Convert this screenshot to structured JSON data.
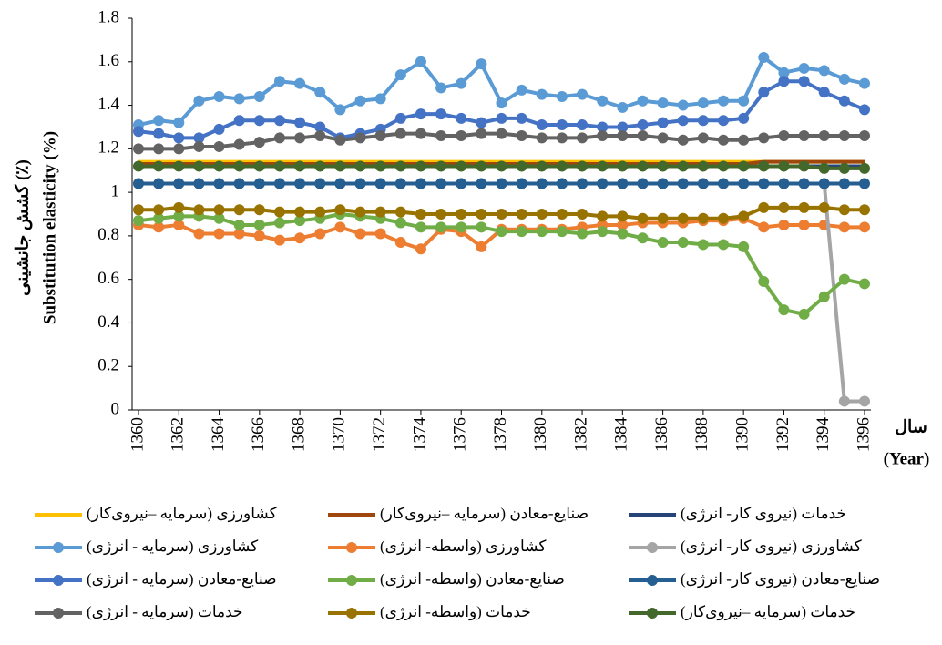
{
  "chart_data": {
    "type": "line",
    "y_label": "کشش جانشینی (٪)",
    "y_label_en": "Substitution elasticity (%)",
    "x_label": "سال",
    "x_label_en": "(Year)",
    "x": [
      1360,
      1361,
      1362,
      1363,
      1364,
      1365,
      1366,
      1367,
      1368,
      1369,
      1370,
      1371,
      1372,
      1373,
      1374,
      1375,
      1376,
      1377,
      1378,
      1379,
      1380,
      1381,
      1382,
      1383,
      1384,
      1385,
      1386,
      1387,
      1388,
      1389,
      1390,
      1391,
      1392,
      1393,
      1394,
      1395,
      1396
    ],
    "xlim": [
      1360,
      1396
    ],
    "xticks": [
      1360,
      1362,
      1364,
      1366,
      1368,
      1370,
      1372,
      1374,
      1376,
      1378,
      1380,
      1382,
      1384,
      1386,
      1388,
      1390,
      1392,
      1394,
      1396
    ],
    "ylim": [
      0,
      1.8
    ],
    "yticks": [
      0,
      0.2,
      0.4,
      0.6,
      0.8,
      1,
      1.2,
      1.4,
      1.6,
      1.8
    ],
    "series": [
      {
        "name": "کشاورزی (سرمایه –نیروی‌کار)",
        "color": "#FFC000",
        "markers": false,
        "values": [
          1.14,
          1.14,
          1.14,
          1.14,
          1.14,
          1.14,
          1.14,
          1.14,
          1.14,
          1.14,
          1.14,
          1.14,
          1.14,
          1.14,
          1.14,
          1.14,
          1.14,
          1.14,
          1.14,
          1.14,
          1.14,
          1.14,
          1.14,
          1.14,
          1.14,
          1.14,
          1.14,
          1.14,
          1.14,
          1.14,
          1.14,
          1.14,
          1.14,
          1.14,
          1.14,
          1.14,
          1.14
        ]
      },
      {
        "name": "صنایع-معادن (سرمایه –نیروی‌کار)",
        "color": "#9E480E",
        "markers": false,
        "values": [
          1.13,
          1.13,
          1.13,
          1.13,
          1.13,
          1.13,
          1.13,
          1.13,
          1.13,
          1.13,
          1.13,
          1.13,
          1.13,
          1.13,
          1.13,
          1.13,
          1.13,
          1.13,
          1.13,
          1.13,
          1.13,
          1.13,
          1.13,
          1.13,
          1.13,
          1.13,
          1.13,
          1.13,
          1.13,
          1.13,
          1.13,
          1.14,
          1.14,
          1.14,
          1.14,
          1.14,
          1.14
        ]
      },
      {
        "name": "خدمات (نیروی کار- انرژی)",
        "color": "#264478",
        "markers": false,
        "values": [
          1.12,
          1.12,
          1.12,
          1.12,
          1.12,
          1.12,
          1.12,
          1.12,
          1.12,
          1.12,
          1.12,
          1.12,
          1.12,
          1.12,
          1.12,
          1.12,
          1.12,
          1.12,
          1.12,
          1.12,
          1.12,
          1.12,
          1.12,
          1.12,
          1.12,
          1.12,
          1.12,
          1.12,
          1.12,
          1.12,
          1.12,
          1.12,
          1.12,
          1.12,
          1.12,
          1.12,
          1.12
        ]
      },
      {
        "name": "کشاورزی  (سرمایه - انرژی)",
        "color": "#5B9BD5",
        "markers": true,
        "values": [
          1.31,
          1.33,
          1.32,
          1.42,
          1.44,
          1.43,
          1.44,
          1.51,
          1.5,
          1.46,
          1.38,
          1.42,
          1.43,
          1.54,
          1.6,
          1.48,
          1.5,
          1.59,
          1.41,
          1.47,
          1.45,
          1.44,
          1.45,
          1.42,
          1.39,
          1.42,
          1.41,
          1.4,
          1.41,
          1.42,
          1.42,
          1.62,
          1.55,
          1.57,
          1.56,
          1.52,
          1.5
        ]
      },
      {
        "name": "کشاورزی (واسطه- انرژی)",
        "color": "#ED7D31",
        "markers": true,
        "values": [
          0.85,
          0.84,
          0.85,
          0.81,
          0.81,
          0.81,
          0.8,
          0.78,
          0.79,
          0.81,
          0.84,
          0.81,
          0.81,
          0.77,
          0.74,
          0.83,
          0.82,
          0.75,
          0.83,
          0.83,
          0.83,
          0.83,
          0.84,
          0.85,
          0.85,
          0.86,
          0.86,
          0.86,
          0.87,
          0.87,
          0.88,
          0.84,
          0.85,
          0.85,
          0.85,
          0.84,
          0.84
        ]
      },
      {
        "name": "کشاورزی (نیروی کار- انرژی)",
        "color": "#A5A5A5",
        "markers": true,
        "values": [
          1.04,
          1.04,
          1.04,
          1.04,
          1.04,
          1.04,
          1.04,
          1.04,
          1.04,
          1.04,
          1.04,
          1.04,
          1.04,
          1.04,
          1.04,
          1.04,
          1.04,
          1.04,
          1.04,
          1.04,
          1.04,
          1.04,
          1.04,
          1.04,
          1.04,
          1.04,
          1.04,
          1.04,
          1.04,
          1.04,
          1.04,
          1.04,
          1.04,
          1.04,
          1.04,
          0.04,
          0.04
        ]
      },
      {
        "name": "صنایع-معادن  (سرمایه - انرژی)",
        "color": "#4472C4",
        "markers": true,
        "values": [
          1.28,
          1.27,
          1.25,
          1.25,
          1.29,
          1.33,
          1.33,
          1.33,
          1.32,
          1.3,
          1.25,
          1.27,
          1.29,
          1.34,
          1.36,
          1.36,
          1.34,
          1.32,
          1.34,
          1.34,
          1.31,
          1.31,
          1.31,
          1.3,
          1.3,
          1.31,
          1.32,
          1.33,
          1.33,
          1.33,
          1.34,
          1.46,
          1.51,
          1.51,
          1.46,
          1.42,
          1.38
        ]
      },
      {
        "name": "صنایع-معادن (واسطه- انرژی)",
        "color": "#70AD47",
        "markers": true,
        "values": [
          0.87,
          0.88,
          0.89,
          0.89,
          0.88,
          0.85,
          0.85,
          0.86,
          0.87,
          0.88,
          0.9,
          0.89,
          0.88,
          0.86,
          0.84,
          0.84,
          0.84,
          0.84,
          0.82,
          0.82,
          0.82,
          0.82,
          0.81,
          0.82,
          0.81,
          0.79,
          0.77,
          0.77,
          0.76,
          0.76,
          0.75,
          0.59,
          0.46,
          0.44,
          0.52,
          0.6,
          0.58
        ]
      },
      {
        "name": "صنایع-معادن (نیروی کار- انرژی)",
        "color": "#255E91",
        "markers": true,
        "values": [
          1.04,
          1.04,
          1.04,
          1.04,
          1.04,
          1.04,
          1.04,
          1.04,
          1.04,
          1.04,
          1.04,
          1.04,
          1.04,
          1.04,
          1.04,
          1.04,
          1.04,
          1.04,
          1.04,
          1.04,
          1.04,
          1.04,
          1.04,
          1.04,
          1.04,
          1.04,
          1.04,
          1.04,
          1.04,
          1.04,
          1.04,
          1.04,
          1.04,
          1.04,
          1.04,
          1.04,
          1.04
        ]
      },
      {
        "name": "خدمات  (سرمایه - انرژی)",
        "color": "#636363",
        "markers": true,
        "values": [
          1.2,
          1.2,
          1.2,
          1.21,
          1.21,
          1.22,
          1.23,
          1.25,
          1.25,
          1.26,
          1.24,
          1.25,
          1.26,
          1.27,
          1.27,
          1.26,
          1.26,
          1.27,
          1.27,
          1.26,
          1.25,
          1.25,
          1.25,
          1.26,
          1.26,
          1.26,
          1.25,
          1.24,
          1.25,
          1.24,
          1.24,
          1.25,
          1.26,
          1.26,
          1.26,
          1.26,
          1.26
        ]
      },
      {
        "name": "خدمات (واسطه- انرژی)",
        "color": "#997300",
        "markers": true,
        "values": [
          0.92,
          0.92,
          0.93,
          0.92,
          0.92,
          0.92,
          0.92,
          0.91,
          0.91,
          0.91,
          0.92,
          0.91,
          0.91,
          0.91,
          0.9,
          0.9,
          0.9,
          0.9,
          0.9,
          0.9,
          0.9,
          0.9,
          0.9,
          0.89,
          0.89,
          0.88,
          0.88,
          0.88,
          0.88,
          0.88,
          0.89,
          0.93,
          0.93,
          0.93,
          0.93,
          0.92,
          0.92
        ]
      },
      {
        "name": "خدمات (سرمایه –نیروی‌کار)",
        "color": "#43682B",
        "markers": true,
        "values": [
          1.12,
          1.12,
          1.12,
          1.12,
          1.12,
          1.12,
          1.12,
          1.12,
          1.12,
          1.12,
          1.12,
          1.12,
          1.12,
          1.12,
          1.12,
          1.12,
          1.12,
          1.12,
          1.12,
          1.12,
          1.12,
          1.12,
          1.12,
          1.12,
          1.12,
          1.12,
          1.12,
          1.12,
          1.12,
          1.12,
          1.12,
          1.12,
          1.12,
          1.12,
          1.11,
          1.11,
          1.11
        ]
      }
    ]
  }
}
